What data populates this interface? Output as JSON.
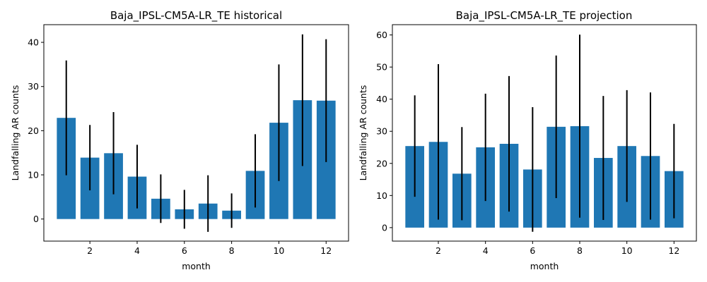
{
  "chart_data": [
    {
      "type": "bar",
      "title": "Baja_IPSL-CM5A-LR_TE historical",
      "xlabel": "month",
      "ylabel": "Landfalling AR counts",
      "x": [
        1,
        2,
        3,
        4,
        5,
        6,
        7,
        8,
        9,
        10,
        11,
        12
      ],
      "values": [
        22.9,
        13.9,
        14.9,
        9.6,
        4.6,
        2.2,
        3.5,
        1.9,
        10.9,
        21.8,
        26.9,
        26.8
      ],
      "error": [
        13.0,
        7.4,
        9.3,
        7.2,
        5.5,
        4.4,
        6.4,
        3.9,
        8.3,
        13.2,
        14.9,
        13.9
      ],
      "xticks": [
        2,
        4,
        6,
        8,
        10,
        12
      ],
      "yticks": [
        0,
        10,
        20,
        30,
        40
      ],
      "xlim": [
        0.05,
        12.95
      ],
      "ylim": [
        -5,
        44
      ],
      "grid": false,
      "legend": false
    },
    {
      "type": "bar",
      "title": "Baja_IPSL-CM5A-LR_TE projection",
      "xlabel": "month",
      "ylabel": "Landfalling AR counts",
      "x": [
        1,
        2,
        3,
        4,
        5,
        6,
        7,
        8,
        9,
        10,
        11,
        12
      ],
      "values": [
        25.4,
        26.7,
        16.8,
        25.0,
        26.1,
        18.1,
        31.4,
        31.6,
        21.7,
        25.4,
        22.3,
        17.6
      ],
      "error": [
        15.8,
        24.2,
        14.5,
        16.7,
        21.1,
        19.4,
        22.2,
        28.5,
        19.3,
        17.4,
        19.8,
        14.7
      ],
      "xticks": [
        2,
        4,
        6,
        8,
        10,
        12
      ],
      "yticks": [
        0,
        10,
        20,
        30,
        40,
        50,
        60
      ],
      "xlim": [
        0.05,
        12.95
      ],
      "ylim": [
        -4.2,
        63.2
      ],
      "grid": false,
      "legend": false
    }
  ],
  "colors": {
    "bar": "#1f77b4",
    "errorbar": "#000000"
  }
}
